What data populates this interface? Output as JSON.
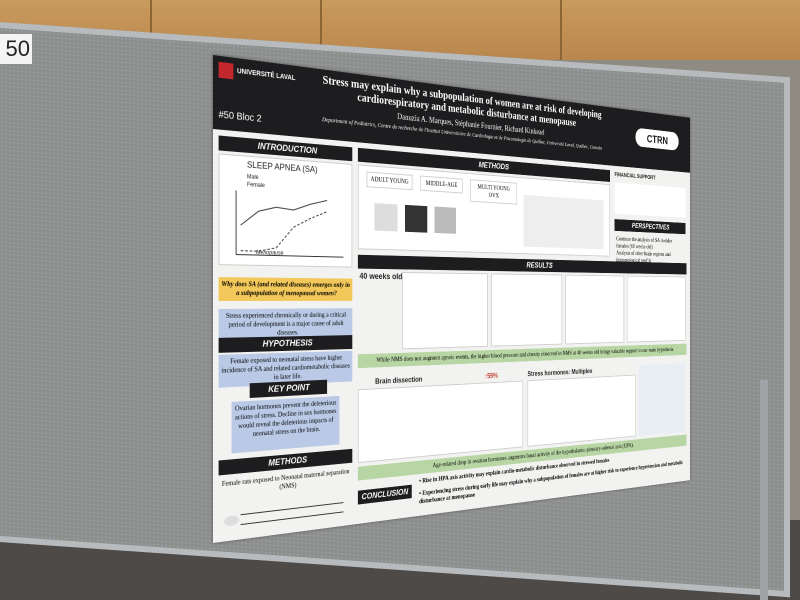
{
  "board_number": "50",
  "poster": {
    "university": "UNIVERSITÉ LAVAL",
    "title": "Stress may explain why a subpopulation of women are at risk of developing cardiorespiratory and metabolic disturbance at menopause",
    "authors": "Danuzia A. Marques, Stéphanie Fournier, Richard Kinkead",
    "affiliation": "Department of Pediatrics, Centre de recherche de l'Institut Universitaire de Cardiologie et de Pneumologie de Québec, Université Laval, Québec, Canada",
    "booth": "#50 Bloc 2",
    "logo": "CTRN",
    "introduction": {
      "heading": "INTRODUCTION",
      "chart_title": "SLEEP APNEA (SA)",
      "legend": [
        "Male",
        "Female"
      ],
      "annotation": "Menopause",
      "question": "Why does SA (and related diseases) emerges only in a subpopulation of menopausal women?",
      "statement": "Stress experienced chronically or during a critical period of development is a major cause of adult diseases."
    },
    "hypothesis": {
      "heading": "HYPOTHESIS",
      "text": "Female exposed to neonatal stress have higher incidence of SA and related cardiometabolic diseases in later life."
    },
    "key_point": {
      "heading": "KEY POINT",
      "text": "Ovarian hormones prevent the deleterious actions of stress. Decline in sex hormones would reveal the deleterious impacts of neonatal stress on the brain."
    },
    "methods_left": {
      "heading": "METHODS",
      "text": "Female rats exposed to Neonatal maternal separation (NMS)"
    },
    "methods": {
      "heading": "METHODS",
      "groups": [
        "ADULT YOUNG",
        "MIDDLE-AGE",
        "MULTI YOUNG OVX"
      ]
    },
    "financial_support": "FINANCIAL SUPPORT",
    "perspectives": {
      "heading": "PERSPECTIVES",
      "points": [
        "Continue the analysis of SA in older females (60 weeks old)",
        "Analysis of other brain regions and immunological profile"
      ]
    },
    "results": {
      "heading": "RESULTS",
      "subheading": "40 weeks old:",
      "finding": "While NMS does not augment apneic events, the higher blood pressure and obesity observed in NMS at 40 weeks old brings valuable support to our main hypothesis.",
      "brain_dissection": "Brain dissection",
      "increase": "↑55%",
      "stress_hormones": "Stress hormones: Multiplex",
      "summary": "Age-related drop in ovarian hormones augments basal activity of the hypothalamic-pituitary-adrenal axis (HPA)."
    },
    "conclusion": {
      "heading": "CONCLUSION",
      "points": [
        "• Rise in HPA axis activity may explain cardio-metabolic disturbance observed in stressed females",
        "• Experiencing stress during early life may explain why a subpopulation of females are at higher risk to experience hypertension and metabolic disturbance at menopause"
      ]
    }
  }
}
